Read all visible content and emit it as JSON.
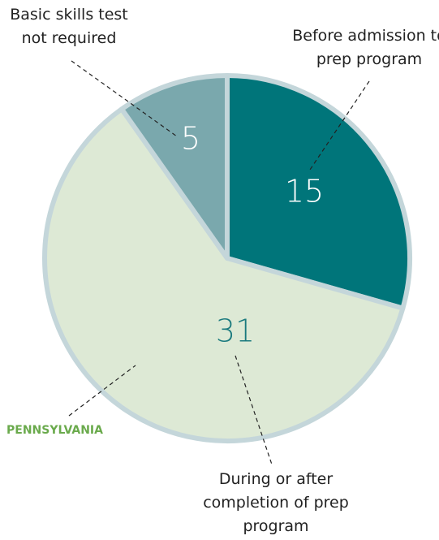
{
  "chart_data": {
    "type": "pie",
    "categories": [
      "Before admission to prep program",
      "During or after completion of prep program",
      "Basic skills test not required"
    ],
    "values": [
      15,
      31,
      5
    ],
    "colors": [
      "#00757a",
      "#dde9d5",
      "#7aa8ad"
    ],
    "label_colors": [
      "#ffffff",
      "#1a7a7e",
      "#ffffff"
    ],
    "annotation": "PENNSYLVANIA"
  }
}
